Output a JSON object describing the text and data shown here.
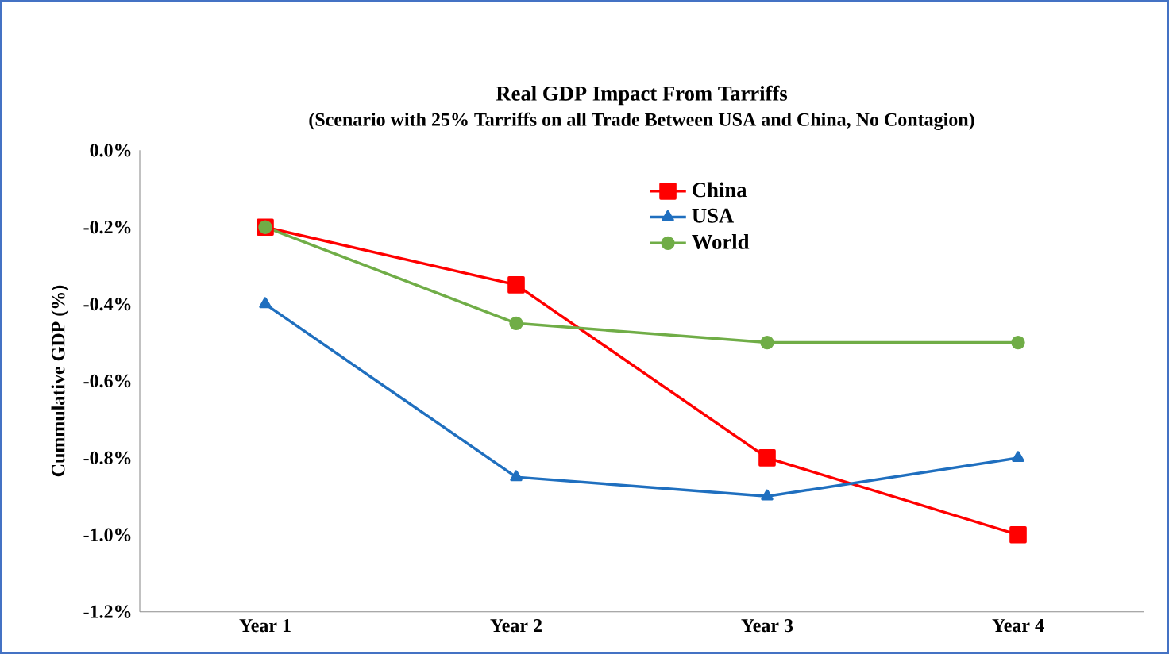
{
  "chart_data": {
    "type": "line",
    "title": "Real GDP Impact From Tarriffs",
    "subtitle": "(Scenario with 25% Tarriffs on all Trade Between USA and China, No Contagion)",
    "ylabel": "Cummulative GDP (%)",
    "categories": [
      "Year 1",
      "Year 2",
      "Year 3",
      "Year 4"
    ],
    "series": [
      {
        "name": "China",
        "color": "#ff0000",
        "marker": "square",
        "values": [
          -0.2,
          -0.35,
          -0.8,
          -1.0
        ]
      },
      {
        "name": "USA",
        "color": "#1f6fbf",
        "marker": "triangle",
        "values": [
          -0.4,
          -0.85,
          -0.9,
          -0.8
        ]
      },
      {
        "name": "World",
        "color": "#70ad47",
        "marker": "circle",
        "values": [
          -0.2,
          -0.45,
          -0.5,
          -0.5
        ]
      }
    ],
    "ylim": [
      -1.2,
      0
    ],
    "yticks": [
      {
        "value": -1.2,
        "label": "-1.2%"
      },
      {
        "value": -1.0,
        "label": "-1.0%"
      },
      {
        "value": -0.8,
        "label": "-0.8%"
      },
      {
        "value": -0.6,
        "label": "-0.6%"
      },
      {
        "value": -0.4,
        "label": "-0.4%"
      },
      {
        "value": -0.2,
        "label": "-0.2%"
      },
      {
        "value": 0.0,
        "label": "0.0%"
      }
    ],
    "legend": "top",
    "grid": false,
    "line_style": "solid"
  }
}
